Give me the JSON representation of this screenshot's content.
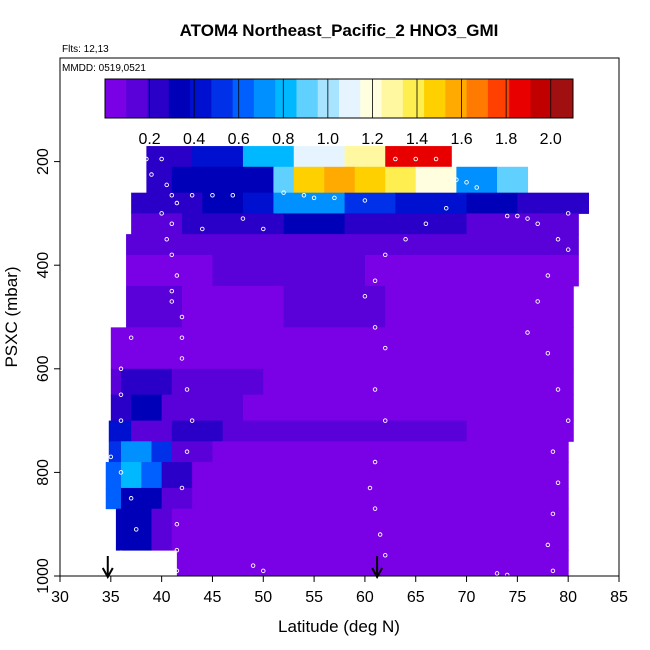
{
  "chart_data": {
    "type": "heatmap",
    "title": "ATOM4 Northeast_Pacific_2 HNO3_GMI",
    "annotations": [
      "Flts: 12,13",
      "MMDD: 0519,0521"
    ],
    "xlabel": "Latitude (deg N)",
    "ylabel": "PSXC (mbar)",
    "xlim": [
      30,
      85
    ],
    "ylim": [
      1000,
      0
    ],
    "x_ticks": [
      "30",
      "35",
      "40",
      "45",
      "50",
      "55",
      "60",
      "65",
      "70",
      "75",
      "80",
      "85"
    ],
    "y_ticks": [
      "200",
      "400",
      "600",
      "800",
      "1000"
    ],
    "colorbar": {
      "range": [
        0,
        2.1
      ],
      "ticks": [
        "0.2",
        "0.4",
        "0.6",
        "0.8",
        "1.0",
        "1.2",
        "1.4",
        "1.6",
        "1.8",
        "2.0"
      ],
      "colors": [
        "#7a00e6",
        "#5a00d8",
        "#2a00c8",
        "#0000b8",
        "#0010d0",
        "#0030e8",
        "#0060ff",
        "#0090ff",
        "#00b8ff",
        "#60d0ff",
        "#a8e4ff",
        "#e6f4ff",
        "#ffffe0",
        "#fff8a0",
        "#ffee50",
        "#ffd000",
        "#ffaa00",
        "#ff7a00",
        "#ff4000",
        "#e80000",
        "#c00000",
        "#a01010"
      ]
    },
    "bands": [
      {
        "p": [
          170,
          210
        ],
        "segs": [
          [
            38.5,
            43,
            0.25
          ],
          [
            43,
            48,
            0.45
          ],
          [
            48,
            53,
            0.8
          ],
          [
            53,
            58,
            1.05
          ],
          [
            58,
            62,
            1.3
          ],
          [
            62,
            68.5,
            1.9
          ]
        ]
      },
      {
        "p": [
          210,
          260
        ],
        "segs": [
          [
            38.5,
            41,
            0.2
          ],
          [
            41,
            51,
            0.3
          ],
          [
            51,
            53,
            0.9
          ],
          [
            53,
            56,
            1.5
          ],
          [
            56,
            59,
            1.6
          ],
          [
            59,
            62,
            1.5
          ],
          [
            62,
            65,
            1.35
          ],
          [
            65,
            69,
            1.15
          ],
          [
            69,
            73,
            0.75
          ],
          [
            73,
            76,
            0.95
          ]
        ]
      },
      {
        "p": [
          260,
          300
        ],
        "segs": [
          [
            37,
            44,
            0.2
          ],
          [
            44,
            48,
            0.3
          ],
          [
            48,
            51,
            0.4
          ],
          [
            51,
            58,
            0.75
          ],
          [
            58,
            63,
            0.55
          ],
          [
            63,
            70,
            0.4
          ],
          [
            70,
            75,
            0.3
          ],
          [
            75,
            82,
            0.25
          ]
        ]
      },
      {
        "p": [
          300,
          340
        ],
        "segs": [
          [
            37,
            42,
            0.12
          ],
          [
            42,
            52,
            0.2
          ],
          [
            52,
            58,
            0.3
          ],
          [
            58,
            70,
            0.22
          ],
          [
            70,
            81,
            0.18
          ]
        ]
      },
      {
        "p": [
          340,
          380
        ],
        "segs": [
          [
            36.5,
            50,
            0.1
          ],
          [
            50,
            62,
            0.14
          ],
          [
            62,
            81,
            0.1
          ]
        ]
      },
      {
        "p": [
          380,
          440
        ],
        "segs": [
          [
            36.5,
            45,
            0.08
          ],
          [
            45,
            60,
            0.1
          ],
          [
            60,
            81,
            0.08
          ]
        ]
      },
      {
        "p": [
          440,
          520
        ],
        "segs": [
          [
            36.5,
            42,
            0.12
          ],
          [
            42,
            52,
            0.08
          ],
          [
            52,
            62,
            0.1
          ],
          [
            62,
            80.5,
            0.08
          ]
        ]
      },
      {
        "p": [
          520,
          600
        ],
        "segs": [
          [
            35,
            38,
            0.05
          ],
          [
            38,
            42,
            0.06
          ],
          [
            42,
            60,
            0.05
          ],
          [
            60,
            80.5,
            0.06
          ]
        ]
      },
      {
        "p": [
          600,
          650
        ],
        "segs": [
          [
            35,
            36,
            0.15
          ],
          [
            36,
            41,
            0.2
          ],
          [
            41,
            50,
            0.1
          ],
          [
            50,
            62,
            0.05
          ],
          [
            62,
            80.5,
            0.04
          ]
        ]
      },
      {
        "p": [
          650,
          700
        ],
        "segs": [
          [
            35,
            37,
            0.2
          ],
          [
            37,
            40,
            0.3
          ],
          [
            40,
            48,
            0.15
          ],
          [
            48,
            80.5,
            0.04
          ]
        ]
      },
      {
        "p": [
          700,
          740
        ],
        "segs": [
          [
            34.8,
            37,
            0.45
          ],
          [
            37,
            41,
            0.15
          ],
          [
            41,
            46,
            0.25
          ],
          [
            46,
            60,
            0.15
          ],
          [
            60,
            70,
            0.1
          ],
          [
            70,
            80.5,
            0.05
          ]
        ]
      },
      {
        "p": [
          740,
          780
        ],
        "segs": [
          [
            34.8,
            36,
            0.55
          ],
          [
            36,
            39,
            0.75
          ],
          [
            39,
            41,
            0.55
          ],
          [
            41,
            45,
            0.15
          ],
          [
            45,
            80,
            0.04
          ]
        ]
      },
      {
        "p": [
          780,
          830
        ],
        "segs": [
          [
            34.5,
            36,
            0.65
          ],
          [
            36,
            38,
            0.85
          ],
          [
            38,
            40,
            0.65
          ],
          [
            40,
            43,
            0.2
          ],
          [
            43,
            80,
            0.04
          ]
        ]
      },
      {
        "p": [
          830,
          870
        ],
        "segs": [
          [
            34.5,
            36,
            0.6
          ],
          [
            36,
            40,
            0.35
          ],
          [
            40,
            43,
            0.15
          ],
          [
            43,
            80,
            0.03
          ]
        ]
      },
      {
        "p": [
          870,
          950
        ],
        "segs": [
          [
            35.5,
            39,
            0.3
          ],
          [
            39,
            41,
            0.15
          ],
          [
            41,
            80,
            0.04
          ]
        ]
      },
      {
        "p": [
          950,
          1000
        ],
        "segs": [
          [
            41.5,
            80,
            0.03
          ]
        ]
      }
    ],
    "points": [
      [
        38.5,
        195
      ],
      [
        40,
        195
      ],
      [
        39,
        225
      ],
      [
        40.5,
        245
      ],
      [
        41,
        265
      ],
      [
        41.5,
        280
      ],
      [
        40,
        300
      ],
      [
        41,
        320
      ],
      [
        40.5,
        350
      ],
      [
        41,
        380
      ],
      [
        41.5,
        420
      ],
      [
        41,
        450
      ],
      [
        41,
        470
      ],
      [
        42,
        500
      ],
      [
        42,
        540
      ],
      [
        42,
        580
      ],
      [
        42.5,
        640
      ],
      [
        43,
        700
      ],
      [
        42.5,
        760
      ],
      [
        42,
        830
      ],
      [
        41.5,
        900
      ],
      [
        41.5,
        950
      ],
      [
        41.5,
        990
      ],
      [
        43,
        265
      ],
      [
        45,
        265
      ],
      [
        47,
        265
      ],
      [
        44,
        330
      ],
      [
        48,
        310
      ],
      [
        50,
        330
      ],
      [
        52,
        260
      ],
      [
        54,
        265
      ],
      [
        55,
        270
      ],
      [
        57,
        270
      ],
      [
        60,
        275
      ],
      [
        63,
        195
      ],
      [
        65,
        195
      ],
      [
        67,
        195
      ],
      [
        69,
        235
      ],
      [
        70,
        240
      ],
      [
        71,
        250
      ],
      [
        68,
        290
      ],
      [
        66,
        320
      ],
      [
        64,
        350
      ],
      [
        62,
        380
      ],
      [
        61,
        430
      ],
      [
        60,
        460
      ],
      [
        61,
        520
      ],
      [
        62,
        560
      ],
      [
        61,
        640
      ],
      [
        62,
        700
      ],
      [
        61,
        780
      ],
      [
        60.5,
        830
      ],
      [
        61,
        870
      ],
      [
        61.5,
        920
      ],
      [
        62,
        960
      ],
      [
        74,
        305
      ],
      [
        75,
        305
      ],
      [
        76,
        310
      ],
      [
        77,
        320
      ],
      [
        80,
        300
      ],
      [
        79,
        350
      ],
      [
        80,
        370
      ],
      [
        78,
        420
      ],
      [
        77,
        470
      ],
      [
        76,
        530
      ],
      [
        78,
        570
      ],
      [
        79,
        640
      ],
      [
        80,
        700
      ],
      [
        78.5,
        760
      ],
      [
        79,
        820
      ],
      [
        78.5,
        880
      ],
      [
        78,
        940
      ],
      [
        78.5,
        990
      ],
      [
        73,
        995
      ],
      [
        74,
        998
      ],
      [
        50,
        990
      ],
      [
        49,
        980
      ],
      [
        37,
        540
      ],
      [
        36,
        600
      ],
      [
        36,
        650
      ],
      [
        36,
        700
      ],
      [
        35,
        770
      ],
      [
        36,
        800
      ],
      [
        37,
        850
      ],
      [
        37.5,
        910
      ],
      [
        36,
        955
      ]
    ],
    "arrows_at": [
      34.7,
      61.2
    ]
  }
}
